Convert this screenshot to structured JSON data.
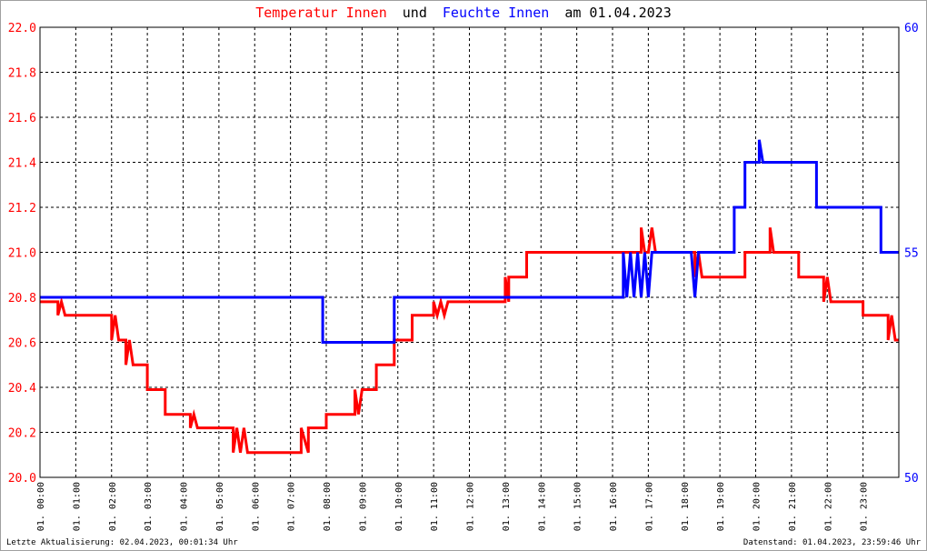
{
  "title": {
    "part1": "Temperatur Innen",
    "part2": "und",
    "part3": "Feuchte Innen",
    "part4": "am 01.04.2023"
  },
  "footer": {
    "left": "Letzte Aktualisierung: 02.04.2023, 00:01:34 Uhr",
    "right": "Datenstand: 01.04.2023, 23:59:46 Uhr"
  },
  "colors": {
    "temperature": "#ff0000",
    "humidity": "#0000ff",
    "title_black": "#000000"
  },
  "chart_data": {
    "type": "line",
    "title": "Temperatur Innen und Feuchte Innen am 01.04.2023",
    "x_unit": "hour of day",
    "xlim": [
      0,
      24
    ],
    "x_tick_labels": [
      "01. 00:00",
      "01. 01:00",
      "01. 02:00",
      "01. 03:00",
      "01. 04:00",
      "01. 05:00",
      "01. 06:00",
      "01. 07:00",
      "01. 08:00",
      "01. 09:00",
      "01. 10:00",
      "01. 11:00",
      "01. 12:00",
      "01. 13:00",
      "01. 14:00",
      "01. 15:00",
      "01. 16:00",
      "01. 17:00",
      "01. 18:00",
      "01. 19:00",
      "01. 20:00",
      "01. 21:00",
      "01. 22:00",
      "01. 23:00"
    ],
    "y_left": {
      "range": [
        20.0,
        22.0
      ],
      "ticks": [
        "20.0",
        "20.2",
        "20.4",
        "20.6",
        "20.8",
        "21.0",
        "21.2",
        "21.4",
        "21.6",
        "21.8",
        "22.0"
      ]
    },
    "y_right": {
      "range": [
        50,
        60
      ],
      "ticks": [
        "50",
        "55",
        "60"
      ]
    },
    "grid": true,
    "series": [
      {
        "name": "Temperatur Innen",
        "axis": "left",
        "points": [
          [
            0.0,
            20.78
          ],
          [
            0.5,
            20.78
          ],
          [
            0.5,
            20.72
          ],
          [
            0.6,
            20.78
          ],
          [
            0.7,
            20.72
          ],
          [
            2.0,
            20.72
          ],
          [
            2.0,
            20.61
          ],
          [
            2.1,
            20.72
          ],
          [
            2.2,
            20.61
          ],
          [
            2.4,
            20.61
          ],
          [
            2.4,
            20.5
          ],
          [
            2.5,
            20.61
          ],
          [
            2.6,
            20.5
          ],
          [
            3.0,
            20.5
          ],
          [
            3.0,
            20.39
          ],
          [
            3.5,
            20.39
          ],
          [
            3.5,
            20.28
          ],
          [
            4.2,
            20.28
          ],
          [
            4.2,
            20.22
          ],
          [
            4.3,
            20.28
          ],
          [
            4.4,
            20.22
          ],
          [
            5.4,
            20.22
          ],
          [
            5.4,
            20.11
          ],
          [
            5.5,
            20.22
          ],
          [
            5.6,
            20.11
          ],
          [
            5.7,
            20.22
          ],
          [
            5.8,
            20.11
          ],
          [
            7.3,
            20.11
          ],
          [
            7.3,
            20.22
          ],
          [
            7.5,
            20.11
          ],
          [
            7.5,
            20.22
          ],
          [
            8.0,
            20.22
          ],
          [
            8.0,
            20.28
          ],
          [
            8.8,
            20.28
          ],
          [
            8.8,
            20.39
          ],
          [
            8.9,
            20.28
          ],
          [
            9.0,
            20.39
          ],
          [
            9.4,
            20.39
          ],
          [
            9.4,
            20.5
          ],
          [
            9.9,
            20.5
          ],
          [
            9.9,
            20.61
          ],
          [
            10.4,
            20.61
          ],
          [
            10.4,
            20.72
          ],
          [
            11.0,
            20.72
          ],
          [
            11.0,
            20.78
          ],
          [
            11.1,
            20.72
          ],
          [
            11.2,
            20.78
          ],
          [
            11.3,
            20.72
          ],
          [
            11.4,
            20.78
          ],
          [
            13.0,
            20.78
          ],
          [
            13.0,
            20.89
          ],
          [
            13.1,
            20.78
          ],
          [
            13.1,
            20.89
          ],
          [
            13.6,
            20.89
          ],
          [
            13.6,
            21.0
          ],
          [
            16.8,
            21.0
          ],
          [
            16.8,
            21.11
          ],
          [
            16.9,
            21.0
          ],
          [
            17.0,
            21.0
          ],
          [
            17.1,
            21.11
          ],
          [
            17.2,
            21.0
          ],
          [
            18.3,
            21.0
          ],
          [
            18.3,
            20.89
          ],
          [
            18.4,
            21.0
          ],
          [
            18.5,
            20.89
          ],
          [
            19.7,
            20.89
          ],
          [
            19.7,
            21.0
          ],
          [
            20.4,
            21.0
          ],
          [
            20.4,
            21.11
          ],
          [
            20.5,
            21.0
          ],
          [
            21.2,
            21.0
          ],
          [
            21.2,
            20.89
          ],
          [
            21.9,
            20.89
          ],
          [
            21.9,
            20.78
          ],
          [
            22.0,
            20.89
          ],
          [
            22.1,
            20.78
          ],
          [
            23.0,
            20.78
          ],
          [
            23.0,
            20.72
          ],
          [
            23.7,
            20.72
          ],
          [
            23.7,
            20.61
          ],
          [
            23.8,
            20.72
          ],
          [
            23.9,
            20.61
          ],
          [
            24.0,
            20.61
          ]
        ]
      },
      {
        "name": "Feuchte Innen",
        "axis": "right",
        "points": [
          [
            0.0,
            54.0
          ],
          [
            7.9,
            54.0
          ],
          [
            7.9,
            53.0
          ],
          [
            9.9,
            53.0
          ],
          [
            9.9,
            54.0
          ],
          [
            16.3,
            54.0
          ],
          [
            16.3,
            55.0
          ],
          [
            16.4,
            54.0
          ],
          [
            16.5,
            55.0
          ],
          [
            16.6,
            54.0
          ],
          [
            16.7,
            55.0
          ],
          [
            16.8,
            54.0
          ],
          [
            16.9,
            55.0
          ],
          [
            17.0,
            54.0
          ],
          [
            17.1,
            55.0
          ],
          [
            18.2,
            55.0
          ],
          [
            18.3,
            54.0
          ],
          [
            18.4,
            55.0
          ],
          [
            19.4,
            55.0
          ],
          [
            19.4,
            56.0
          ],
          [
            19.7,
            56.0
          ],
          [
            19.7,
            57.0
          ],
          [
            20.1,
            57.0
          ],
          [
            20.1,
            57.5
          ],
          [
            20.2,
            57.0
          ],
          [
            21.7,
            57.0
          ],
          [
            21.7,
            56.0
          ],
          [
            23.5,
            56.0
          ],
          [
            23.5,
            55.0
          ],
          [
            24.0,
            55.0
          ]
        ]
      }
    ]
  }
}
